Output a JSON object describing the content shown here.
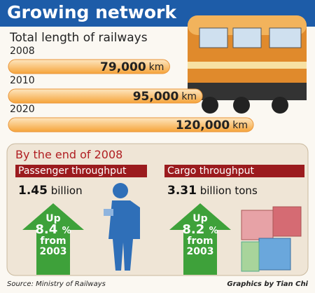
{
  "header": {
    "title": "Growing network"
  },
  "chart_data": {
    "type": "bar",
    "title": "Total length of railways",
    "categories": [
      "2008",
      "2010",
      "2020"
    ],
    "values": [
      79000,
      95000,
      120000
    ],
    "value_labels": [
      "79,000",
      "95,000",
      "120,000"
    ],
    "unit": "km",
    "color": "#f6a43a"
  },
  "panel": {
    "title": "By the end of 2008",
    "sections": [
      {
        "title": "Passenger throughput",
        "value": 1.45,
        "unit": "billion",
        "arrow": {
          "top": "Up",
          "value": 8.4,
          "unit": "%",
          "bottom": "from 2003"
        }
      },
      {
        "title": "Cargo throughput",
        "value": 3.31,
        "unit": "billion tons",
        "arrow": {
          "top": "Up",
          "value": 8.2,
          "unit": "%",
          "bottom": "from 2003"
        }
      }
    ]
  },
  "footer": {
    "source": "Source: Ministry of Railways",
    "credit": "Graphics by Tian Chi"
  }
}
